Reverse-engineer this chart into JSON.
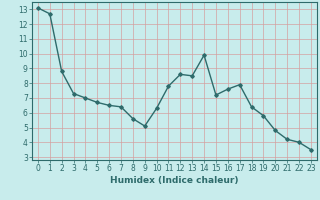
{
  "x": [
    0,
    1,
    2,
    3,
    4,
    5,
    6,
    7,
    8,
    9,
    10,
    11,
    12,
    13,
    14,
    15,
    16,
    17,
    18,
    19,
    20,
    21,
    22,
    23
  ],
  "y": [
    13.1,
    12.7,
    8.8,
    7.3,
    7.0,
    6.7,
    6.5,
    6.4,
    5.6,
    5.1,
    6.3,
    7.8,
    8.6,
    8.5,
    9.9,
    7.2,
    7.6,
    7.9,
    6.4,
    5.8,
    4.8,
    4.2,
    4.0,
    3.5
  ],
  "line_color": "#2e6b6b",
  "marker": "D",
  "marker_size": 1.8,
  "bg_color": "#c8ecec",
  "grid_color": "#d4a0a0",
  "xlabel": "Humidex (Indice chaleur)",
  "xlim": [
    -0.5,
    23.5
  ],
  "ylim": [
    2.8,
    13.5
  ],
  "yticks": [
    3,
    4,
    5,
    6,
    7,
    8,
    9,
    10,
    11,
    12,
    13
  ],
  "xticks": [
    0,
    1,
    2,
    3,
    4,
    5,
    6,
    7,
    8,
    9,
    10,
    11,
    12,
    13,
    14,
    15,
    16,
    17,
    18,
    19,
    20,
    21,
    22,
    23
  ],
  "tick_fontsize": 5.5,
  "label_fontsize": 6.5,
  "line_width": 1.0
}
